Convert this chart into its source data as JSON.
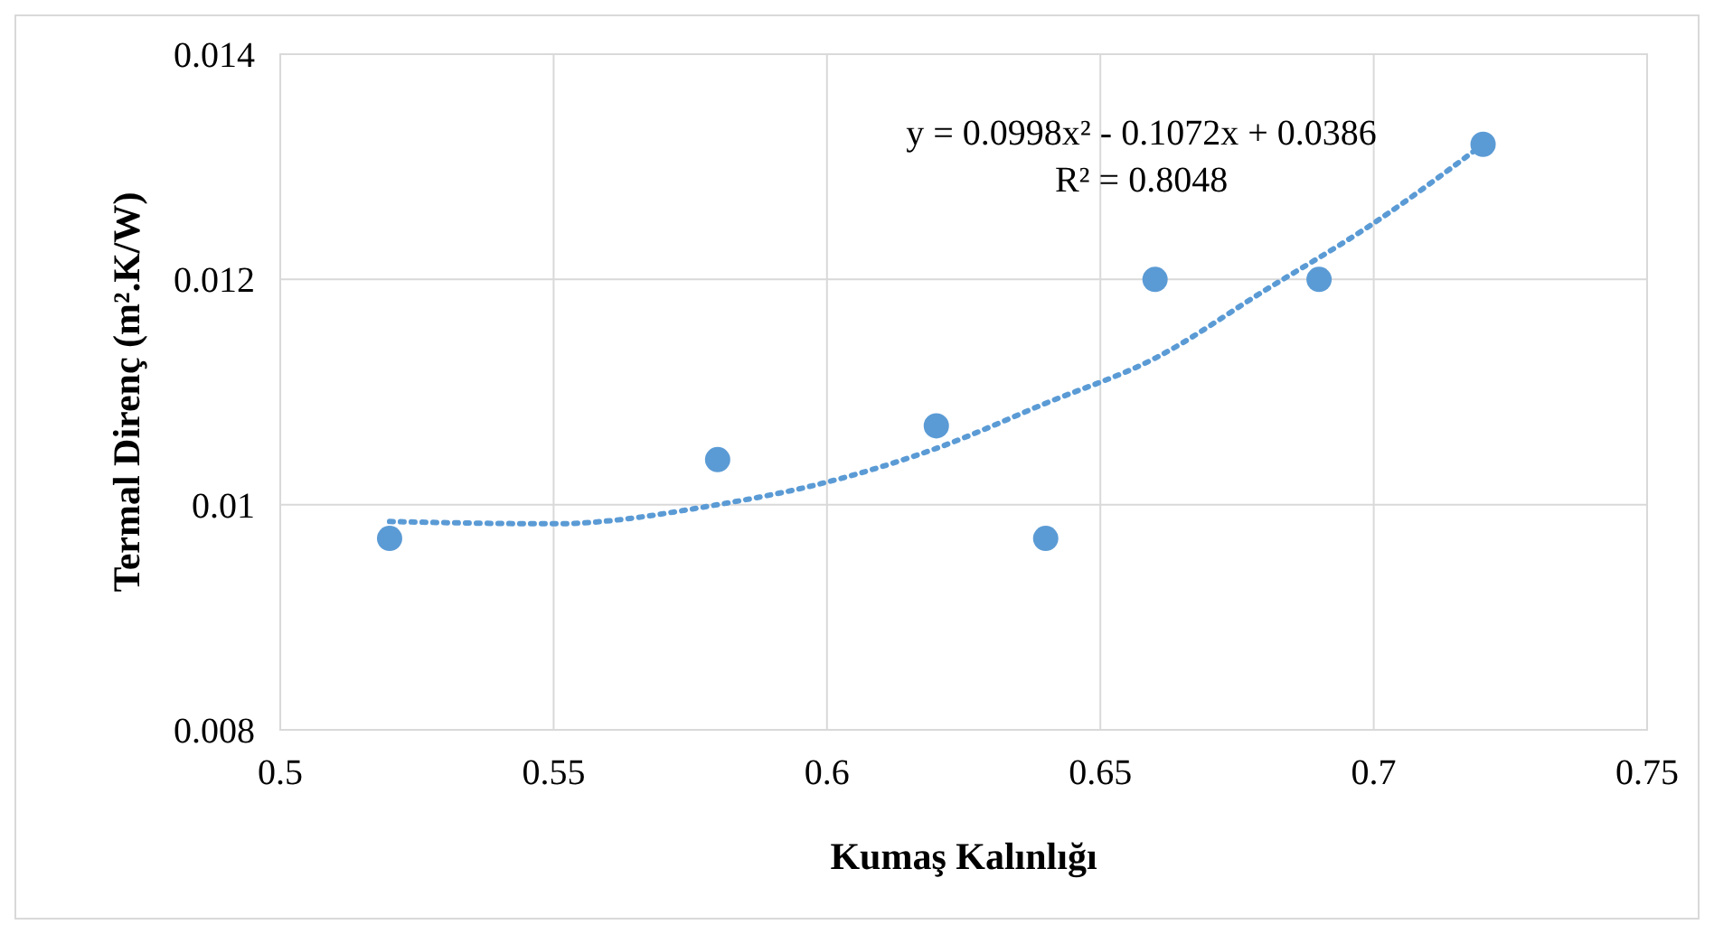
{
  "chart_data": {
    "type": "scatter",
    "xlabel": "Kumaş Kalınlığı",
    "ylabel": "Termal Direnç (m².K/W)",
    "xlim": [
      0.5,
      0.75
    ],
    "xticks": [
      0.5,
      0.55,
      0.6,
      0.65,
      0.7,
      0.75
    ],
    "ylim": [
      0.008,
      0.014
    ],
    "yticks": [
      0.008,
      0.01,
      0.012,
      0.014
    ],
    "grid": true,
    "series": [
      {
        "color": "#5b9bd5",
        "marker": "circle",
        "x": [
          0.52,
          0.58,
          0.62,
          0.64,
          0.66,
          0.69,
          0.72
        ],
        "values": [
          0.0097,
          0.0104,
          0.0107,
          0.0097,
          0.012,
          0.012,
          0.0132
        ]
      },
      {
        "type": "line",
        "color": "#5b9bd5",
        "marker": "none",
        "line_style": "dotted",
        "x": [
          0.52,
          0.55,
          0.58,
          0.6,
          0.62,
          0.64,
          0.66,
          0.68,
          0.7,
          0.72
        ],
        "values": [
          0.00985,
          0.00983,
          0.01,
          0.0102,
          0.0105,
          0.0109,
          0.0113,
          0.0119,
          0.0125,
          0.0132
        ]
      }
    ],
    "annotations": [
      "y = 0.0998x² - 0.1072x + 0.0386",
      "R² = 0.8048"
    ]
  }
}
